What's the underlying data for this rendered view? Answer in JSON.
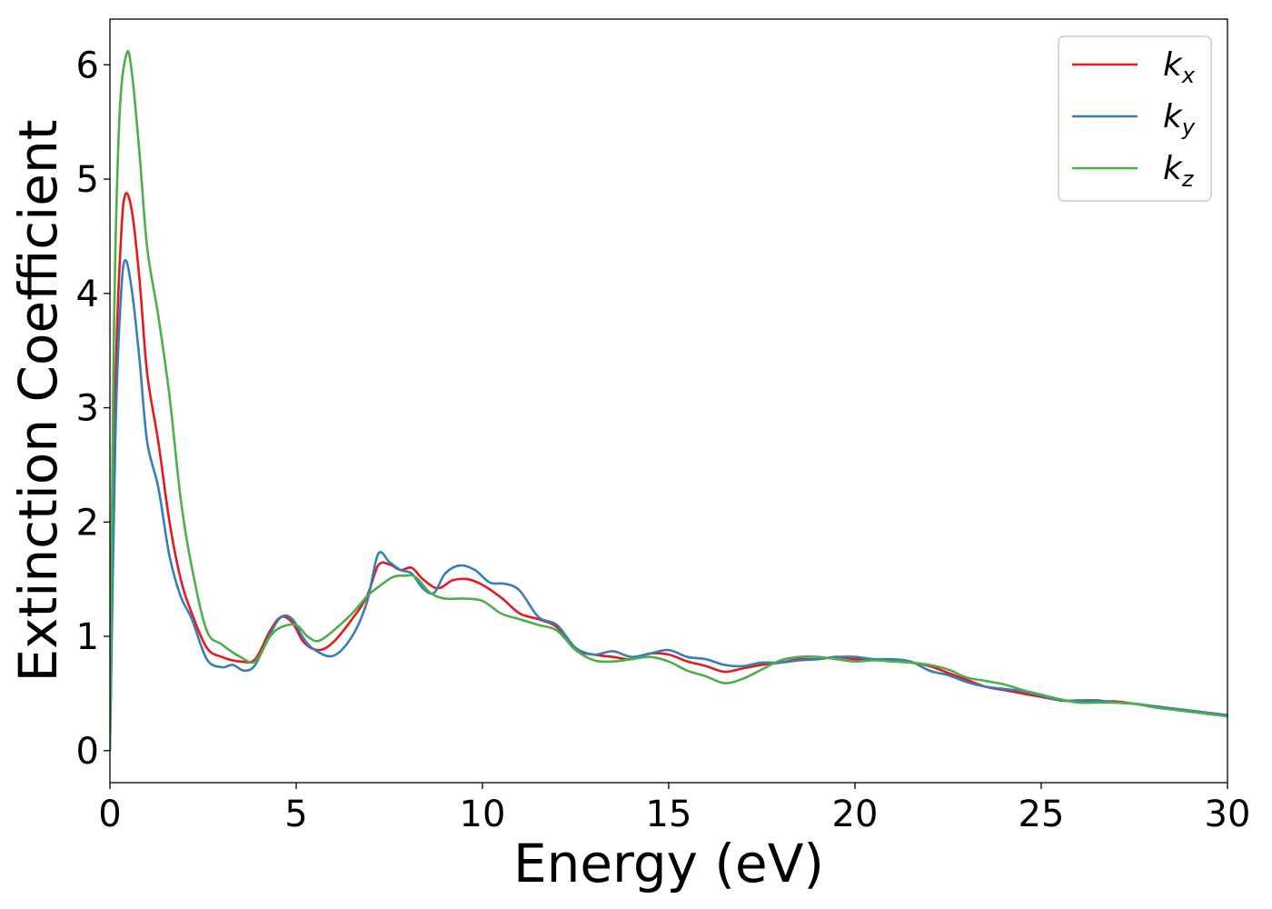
{
  "chart_data": {
    "type": "line",
    "xlabel": "Energy (eV)",
    "ylabel": "Extinction Coefficient",
    "xlim": [
      0,
      30
    ],
    "ylim": [
      -0.28,
      6.4
    ],
    "xticks": [
      0,
      5,
      10,
      15,
      20,
      25,
      30
    ],
    "yticks": [
      0,
      1,
      2,
      3,
      4,
      5,
      6
    ],
    "grid": false,
    "legend_position": "top-right",
    "series": [
      {
        "name": "k",
        "subscript": "x",
        "color": "#e41a1c",
        "points": [
          [
            0,
            0
          ],
          [
            0.15,
            3.2
          ],
          [
            0.3,
            4.5
          ],
          [
            0.42,
            4.87
          ],
          [
            0.6,
            4.7
          ],
          [
            0.8,
            4.1
          ],
          [
            1.0,
            3.3
          ],
          [
            1.3,
            2.7
          ],
          [
            1.6,
            2.0
          ],
          [
            1.9,
            1.5
          ],
          [
            2.2,
            1.2
          ],
          [
            2.6,
            0.9
          ],
          [
            3.0,
            0.82
          ],
          [
            3.5,
            0.78
          ],
          [
            3.9,
            0.8
          ],
          [
            4.3,
            1.05
          ],
          [
            4.6,
            1.17
          ],
          [
            4.9,
            1.12
          ],
          [
            5.2,
            0.95
          ],
          [
            5.6,
            0.88
          ],
          [
            6.0,
            0.95
          ],
          [
            6.5,
            1.15
          ],
          [
            6.9,
            1.35
          ],
          [
            7.2,
            1.62
          ],
          [
            7.5,
            1.63
          ],
          [
            7.8,
            1.58
          ],
          [
            8.1,
            1.6
          ],
          [
            8.4,
            1.5
          ],
          [
            8.8,
            1.42
          ],
          [
            9.2,
            1.49
          ],
          [
            9.6,
            1.5
          ],
          [
            10.0,
            1.45
          ],
          [
            10.5,
            1.34
          ],
          [
            11.0,
            1.2
          ],
          [
            11.5,
            1.15
          ],
          [
            12.0,
            1.08
          ],
          [
            12.5,
            0.88
          ],
          [
            13.0,
            0.84
          ],
          [
            13.5,
            0.82
          ],
          [
            14.0,
            0.8
          ],
          [
            14.5,
            0.85
          ],
          [
            15.0,
            0.84
          ],
          [
            15.5,
            0.78
          ],
          [
            16.0,
            0.74
          ],
          [
            16.5,
            0.69
          ],
          [
            17.0,
            0.72
          ],
          [
            17.5,
            0.75
          ],
          [
            18.0,
            0.77
          ],
          [
            18.5,
            0.8
          ],
          [
            19.0,
            0.8
          ],
          [
            19.5,
            0.82
          ],
          [
            20.0,
            0.8
          ],
          [
            20.5,
            0.8
          ],
          [
            21.0,
            0.79
          ],
          [
            21.5,
            0.77
          ],
          [
            22.0,
            0.74
          ],
          [
            22.5,
            0.68
          ],
          [
            23.0,
            0.62
          ],
          [
            23.5,
            0.56
          ],
          [
            24.0,
            0.53
          ],
          [
            24.5,
            0.5
          ],
          [
            25.0,
            0.47
          ],
          [
            25.5,
            0.44
          ],
          [
            26.0,
            0.43
          ],
          [
            26.5,
            0.43
          ],
          [
            27.0,
            0.43
          ],
          [
            27.5,
            0.41
          ],
          [
            28.0,
            0.39
          ],
          [
            28.5,
            0.37
          ],
          [
            29.0,
            0.35
          ],
          [
            29.5,
            0.33
          ],
          [
            30.0,
            0.31
          ]
        ]
      },
      {
        "name": "k",
        "subscript": "y",
        "color": "#377eb8",
        "points": [
          [
            0,
            0
          ],
          [
            0.15,
            2.8
          ],
          [
            0.3,
            4.0
          ],
          [
            0.42,
            4.29
          ],
          [
            0.6,
            4.0
          ],
          [
            0.8,
            3.4
          ],
          [
            1.0,
            2.7
          ],
          [
            1.3,
            2.3
          ],
          [
            1.6,
            1.7
          ],
          [
            1.9,
            1.35
          ],
          [
            2.2,
            1.15
          ],
          [
            2.6,
            0.8
          ],
          [
            3.0,
            0.73
          ],
          [
            3.3,
            0.75
          ],
          [
            3.6,
            0.7
          ],
          [
            3.9,
            0.75
          ],
          [
            4.3,
            1.02
          ],
          [
            4.6,
            1.17
          ],
          [
            4.9,
            1.15
          ],
          [
            5.2,
            0.98
          ],
          [
            5.5,
            0.88
          ],
          [
            6.0,
            0.83
          ],
          [
            6.5,
            1.0
          ],
          [
            6.9,
            1.3
          ],
          [
            7.2,
            1.72
          ],
          [
            7.5,
            1.65
          ],
          [
            7.8,
            1.58
          ],
          [
            8.1,
            1.55
          ],
          [
            8.4,
            1.42
          ],
          [
            8.7,
            1.38
          ],
          [
            9.0,
            1.55
          ],
          [
            9.4,
            1.62
          ],
          [
            9.8,
            1.58
          ],
          [
            10.2,
            1.47
          ],
          [
            10.6,
            1.46
          ],
          [
            11.0,
            1.4
          ],
          [
            11.5,
            1.17
          ],
          [
            12.0,
            1.1
          ],
          [
            12.5,
            0.9
          ],
          [
            13.0,
            0.84
          ],
          [
            13.5,
            0.87
          ],
          [
            14.0,
            0.82
          ],
          [
            14.5,
            0.85
          ],
          [
            15.0,
            0.88
          ],
          [
            15.5,
            0.82
          ],
          [
            16.0,
            0.8
          ],
          [
            16.5,
            0.75
          ],
          [
            17.0,
            0.74
          ],
          [
            17.5,
            0.77
          ],
          [
            18.0,
            0.77
          ],
          [
            18.5,
            0.79
          ],
          [
            19.0,
            0.8
          ],
          [
            19.5,
            0.82
          ],
          [
            20.0,
            0.82
          ],
          [
            20.5,
            0.8
          ],
          [
            21.0,
            0.8
          ],
          [
            21.5,
            0.78
          ],
          [
            22.0,
            0.7
          ],
          [
            22.5,
            0.66
          ],
          [
            23.0,
            0.6
          ],
          [
            23.5,
            0.56
          ],
          [
            24.0,
            0.54
          ],
          [
            24.5,
            0.52
          ],
          [
            25.0,
            0.48
          ],
          [
            25.5,
            0.44
          ],
          [
            26.0,
            0.44
          ],
          [
            26.5,
            0.44
          ],
          [
            27.0,
            0.42
          ],
          [
            27.5,
            0.41
          ],
          [
            28.0,
            0.39
          ],
          [
            28.5,
            0.37
          ],
          [
            29.0,
            0.35
          ],
          [
            29.5,
            0.33
          ],
          [
            30.0,
            0.31
          ]
        ]
      },
      {
        "name": "k",
        "subscript": "z",
        "color": "#4daf4a",
        "points": [
          [
            0,
            0
          ],
          [
            0.1,
            3.5
          ],
          [
            0.25,
            5.5
          ],
          [
            0.45,
            6.1
          ],
          [
            0.6,
            5.9
          ],
          [
            0.8,
            5.2
          ],
          [
            1.0,
            4.4
          ],
          [
            1.3,
            3.8
          ],
          [
            1.6,
            3.1
          ],
          [
            1.9,
            2.2
          ],
          [
            2.2,
            1.6
          ],
          [
            2.6,
            1.05
          ],
          [
            3.0,
            0.93
          ],
          [
            3.5,
            0.82
          ],
          [
            3.9,
            0.78
          ],
          [
            4.3,
            1.0
          ],
          [
            4.6,
            1.08
          ],
          [
            5.0,
            1.1
          ],
          [
            5.3,
            1.0
          ],
          [
            5.6,
            0.96
          ],
          [
            6.0,
            1.05
          ],
          [
            6.5,
            1.2
          ],
          [
            6.9,
            1.35
          ],
          [
            7.2,
            1.43
          ],
          [
            7.6,
            1.52
          ],
          [
            7.9,
            1.53
          ],
          [
            8.2,
            1.52
          ],
          [
            8.6,
            1.38
          ],
          [
            9.0,
            1.33
          ],
          [
            9.5,
            1.33
          ],
          [
            10.0,
            1.31
          ],
          [
            10.5,
            1.2
          ],
          [
            11.0,
            1.15
          ],
          [
            11.5,
            1.1
          ],
          [
            12.0,
            1.05
          ],
          [
            12.5,
            0.88
          ],
          [
            13.0,
            0.79
          ],
          [
            13.5,
            0.78
          ],
          [
            14.0,
            0.8
          ],
          [
            14.5,
            0.82
          ],
          [
            15.0,
            0.78
          ],
          [
            15.5,
            0.7
          ],
          [
            16.0,
            0.65
          ],
          [
            16.5,
            0.59
          ],
          [
            17.0,
            0.63
          ],
          [
            17.5,
            0.71
          ],
          [
            18.0,
            0.79
          ],
          [
            18.5,
            0.82
          ],
          [
            19.0,
            0.82
          ],
          [
            19.5,
            0.8
          ],
          [
            20.0,
            0.78
          ],
          [
            20.5,
            0.79
          ],
          [
            21.0,
            0.78
          ],
          [
            21.5,
            0.77
          ],
          [
            22.0,
            0.75
          ],
          [
            22.5,
            0.71
          ],
          [
            23.0,
            0.64
          ],
          [
            23.5,
            0.61
          ],
          [
            24.0,
            0.58
          ],
          [
            24.5,
            0.53
          ],
          [
            25.0,
            0.49
          ],
          [
            25.5,
            0.45
          ],
          [
            26.0,
            0.42
          ],
          [
            26.5,
            0.42
          ],
          [
            27.0,
            0.42
          ],
          [
            27.5,
            0.41
          ],
          [
            28.0,
            0.38
          ],
          [
            28.5,
            0.36
          ],
          [
            29.0,
            0.34
          ],
          [
            29.5,
            0.32
          ],
          [
            30.0,
            0.3
          ]
        ]
      }
    ]
  }
}
